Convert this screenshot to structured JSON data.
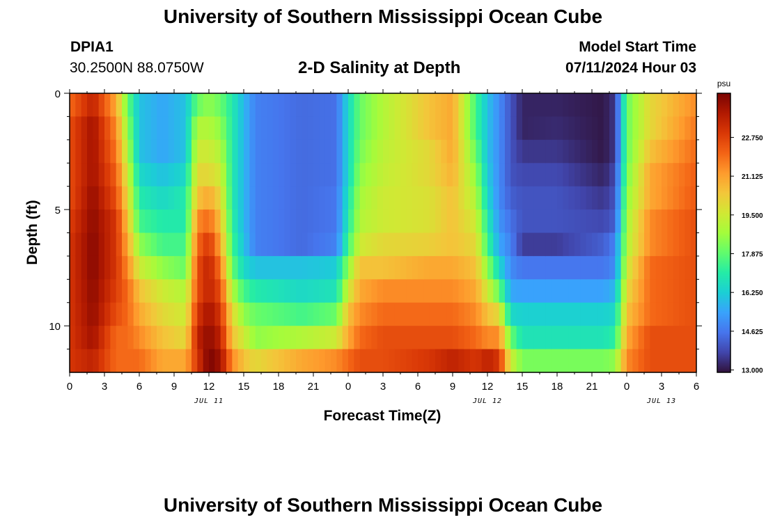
{
  "header": {
    "title": "University of Southern Mississippi Ocean Cube",
    "station": "DPIA1",
    "coords": "30.2500N  88.0750W",
    "plot_title": "2-D Salinity at Depth",
    "model_start_label": "Model Start Time",
    "model_start_value": "07/11/2024 Hour 03"
  },
  "footer": {
    "title": "University of Southern Mississippi Ocean Cube"
  },
  "chart_data": {
    "type": "heatmap",
    "title": "2-D Salinity at Depth",
    "xlabel": "Forecast Time(Z)",
    "ylabel": "Depth (ft)",
    "x_range_hours": [
      0,
      54
    ],
    "y_range_ft": [
      0,
      12
    ],
    "x_ticks": [
      {
        "h": 0,
        "label": "0"
      },
      {
        "h": 3,
        "label": "3"
      },
      {
        "h": 6,
        "label": "6"
      },
      {
        "h": 9,
        "label": "9"
      },
      {
        "h": 12,
        "label": "12"
      },
      {
        "h": 15,
        "label": "15"
      },
      {
        "h": 18,
        "label": "18"
      },
      {
        "h": 21,
        "label": "21"
      },
      {
        "h": 24,
        "label": "0"
      },
      {
        "h": 27,
        "label": "3"
      },
      {
        "h": 30,
        "label": "6"
      },
      {
        "h": 33,
        "label": "9"
      },
      {
        "h": 36,
        "label": "12"
      },
      {
        "h": 39,
        "label": "15"
      },
      {
        "h": 42,
        "label": "18"
      },
      {
        "h": 45,
        "label": "21"
      },
      {
        "h": 48,
        "label": "0"
      },
      {
        "h": 51,
        "label": "3"
      },
      {
        "h": 54,
        "label": "6"
      }
    ],
    "date_labels": [
      {
        "h": 12,
        "label": "JUL 11"
      },
      {
        "h": 36,
        "label": "JUL 12"
      },
      {
        "h": 51,
        "label": "JUL 13"
      }
    ],
    "y_ticks": [
      {
        "d": 0,
        "label": "0"
      },
      {
        "d": 5,
        "label": "5"
      },
      {
        "d": 10,
        "label": "10"
      }
    ],
    "colorbar": {
      "unit": "psu",
      "min": 12.9,
      "max": 24.6,
      "ticks": [
        {
          "v": 13.0,
          "label": "13.000"
        },
        {
          "v": 14.625,
          "label": "14.625"
        },
        {
          "v": 16.25,
          "label": "16.250"
        },
        {
          "v": 17.875,
          "label": "17.875"
        },
        {
          "v": 19.5,
          "label": "19.500"
        },
        {
          "v": 21.125,
          "label": "21.125"
        },
        {
          "v": 22.75,
          "label": "22.750"
        }
      ],
      "colormap": [
        "#30123b",
        "#4145ab",
        "#4675ed",
        "#39a2fc",
        "#1bcfd4",
        "#24eca6",
        "#61fc6c",
        "#a4fc3b",
        "#d1e834",
        "#f3c63a",
        "#fe9b2d",
        "#f36315",
        "#d93806",
        "#b11901",
        "#7a0402"
      ]
    },
    "depth_levels_ft": [
      0,
      1,
      2,
      3,
      4,
      5,
      6,
      7,
      8,
      9,
      10,
      11
    ],
    "time_keys_hours": [
      0,
      2,
      4,
      5,
      6,
      8,
      10,
      11,
      12,
      13,
      14,
      15,
      16,
      20,
      23,
      24,
      25,
      27,
      31,
      33,
      35,
      36,
      37,
      38,
      39,
      42,
      46,
      47,
      48,
      50,
      54
    ],
    "salinity_psu": [
      [
        22.0,
        22.5,
        22.5,
        22.5,
        22.5,
        22.8,
        23.0,
        23.0,
        23.0,
        23.0,
        23.0,
        23.0
      ],
      [
        23.5,
        24.0,
        24.0,
        24.0,
        24.2,
        24.3,
        24.4,
        24.4,
        24.3,
        24.2,
        24.0,
        23.5
      ],
      [
        21.0,
        21.5,
        21.8,
        22.2,
        22.5,
        23.0,
        23.0,
        23.0,
        22.8,
        22.5,
        22.0,
        22.0
      ],
      [
        18.0,
        18.5,
        19.0,
        19.5,
        20.0,
        20.5,
        21.0,
        21.5,
        22.0,
        22.0,
        22.0,
        22.0
      ],
      [
        16.0,
        16.0,
        16.0,
        16.5,
        17.0,
        17.5,
        18.5,
        19.5,
        20.5,
        21.0,
        21.5,
        22.0
      ],
      [
        15.5,
        15.5,
        15.5,
        16.0,
        16.5,
        17.0,
        17.5,
        18.5,
        19.5,
        20.0,
        20.5,
        21.0
      ],
      [
        16.0,
        16.0,
        16.0,
        16.5,
        17.0,
        17.0,
        17.5,
        18.0,
        19.0,
        19.5,
        20.0,
        21.0
      ],
      [
        18.0,
        19.0,
        19.5,
        20.0,
        20.5,
        21.5,
        22.0,
        22.5,
        22.5,
        23.0,
        23.5,
        23.0
      ],
      [
        18.5,
        19.0,
        19.5,
        20.0,
        21.0,
        22.0,
        23.0,
        23.5,
        23.5,
        24.0,
        24.3,
        24.6
      ],
      [
        18.0,
        18.5,
        19.0,
        19.5,
        20.0,
        20.5,
        21.0,
        21.8,
        22.5,
        23.0,
        23.5,
        24.0
      ],
      [
        17.0,
        17.0,
        17.0,
        17.0,
        17.0,
        17.2,
        17.5,
        18.0,
        19.0,
        20.0,
        20.5,
        21.5
      ],
      [
        15.8,
        15.8,
        15.8,
        15.8,
        15.8,
        15.8,
        16.0,
        16.5,
        17.5,
        18.5,
        19.5,
        20.5
      ],
      [
        14.8,
        14.8,
        14.8,
        14.8,
        14.8,
        14.8,
        14.8,
        16.0,
        17.0,
        18.0,
        18.5,
        20.0
      ],
      [
        14.4,
        14.4,
        14.4,
        14.4,
        14.4,
        14.4,
        14.4,
        16.0,
        16.5,
        17.5,
        19.0,
        21.0
      ],
      [
        14.5,
        14.5,
        14.5,
        14.5,
        14.6,
        14.6,
        14.8,
        16.2,
        16.8,
        18.0,
        19.5,
        21.5
      ],
      [
        16.5,
        16.5,
        16.5,
        16.5,
        16.8,
        17.0,
        17.5,
        18.5,
        19.5,
        20.5,
        21.0,
        22.0
      ],
      [
        18.0,
        18.0,
        18.2,
        18.5,
        18.8,
        19.0,
        19.5,
        20.5,
        21.0,
        21.5,
        22.0,
        22.5
      ],
      [
        19.0,
        19.0,
        19.2,
        19.3,
        19.5,
        19.5,
        20.0,
        20.5,
        21.5,
        22.0,
        22.5,
        22.5
      ],
      [
        20.5,
        20.5,
        20.0,
        20.0,
        19.8,
        19.8,
        20.2,
        21.0,
        21.5,
        22.0,
        22.5,
        23.0
      ],
      [
        21.0,
        21.0,
        21.0,
        20.8,
        20.5,
        20.5,
        20.5,
        21.0,
        21.5,
        22.0,
        22.5,
        23.5
      ],
      [
        17.5,
        17.5,
        18.0,
        18.5,
        19.0,
        19.5,
        20.0,
        20.5,
        21.0,
        21.5,
        22.0,
        23.0
      ],
      [
        16.0,
        16.0,
        16.0,
        16.2,
        16.5,
        17.0,
        17.5,
        18.5,
        19.5,
        20.5,
        21.5,
        23.5
      ],
      [
        15.0,
        15.0,
        15.0,
        15.0,
        15.0,
        15.2,
        15.5,
        16.5,
        18.0,
        20.0,
        21.5,
        23.0
      ],
      [
        14.0,
        14.0,
        14.0,
        14.0,
        14.2,
        14.5,
        14.8,
        15.0,
        15.5,
        16.5,
        18.0,
        19.5
      ],
      [
        13.2,
        13.2,
        13.5,
        13.8,
        14.0,
        14.0,
        13.6,
        14.6,
        15.4,
        16.3,
        16.8,
        18.2
      ],
      [
        13.2,
        13.3,
        13.5,
        13.8,
        14.0,
        14.0,
        13.6,
        14.6,
        15.4,
        16.3,
        16.8,
        18.2
      ],
      [
        13.0,
        13.0,
        13.0,
        13.2,
        13.5,
        13.8,
        14.2,
        14.6,
        15.4,
        16.3,
        16.8,
        18.2
      ],
      [
        13.5,
        13.5,
        13.5,
        13.8,
        14.0,
        14.2,
        14.8,
        15.0,
        15.8,
        16.5,
        17.2,
        18.5
      ],
      [
        18.0,
        18.0,
        18.0,
        18.2,
        18.5,
        18.8,
        19.0,
        19.5,
        20.0,
        20.5,
        21.0,
        21.5
      ],
      [
        20.0,
        20.0,
        20.5,
        21.0,
        21.0,
        21.5,
        21.5,
        22.0,
        22.0,
        22.0,
        22.5,
        22.5
      ],
      [
        21.5,
        21.8,
        22.0,
        22.2,
        22.3,
        22.5,
        22.5,
        22.5,
        22.5,
        22.5,
        22.5,
        22.5
      ]
    ]
  }
}
